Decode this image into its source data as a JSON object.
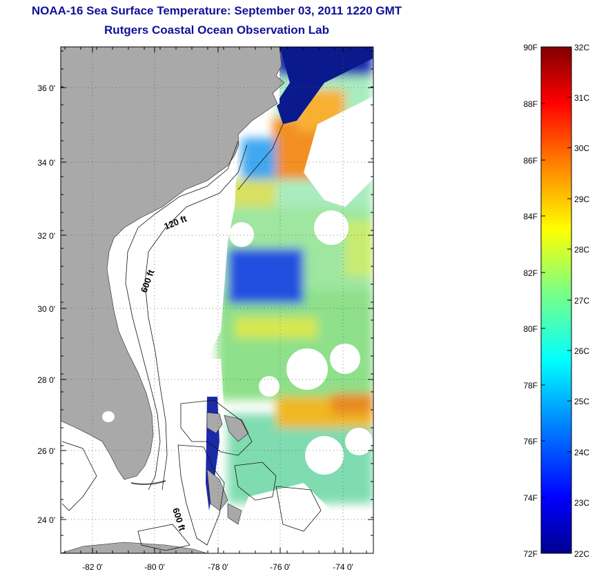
{
  "header": {
    "title": "NOAA-16 Sea Surface Temperature:  September 03, 2011 1220 GMT",
    "subtitle": "Rutgers Coastal Ocean Observation Lab"
  },
  "map": {
    "lat_ticks": [
      "24 0'",
      "26 0'",
      "28 0'",
      "30 0'",
      "32 0'",
      "34 0'",
      "36 0'"
    ],
    "lon_ticks": [
      "-82 0'",
      "-80 0'",
      "-78 0'",
      "-76 0'",
      "-74 0'"
    ],
    "contours": [
      "120 ft",
      "600 ft",
      "600 ft"
    ],
    "land_color": "#a9a9a9",
    "cloud_color": "#ffffff"
  },
  "colorbar": {
    "fahrenheit": [
      "90F",
      "88F",
      "86F",
      "84F",
      "82F",
      "80F",
      "78F",
      "76F",
      "74F",
      "72F"
    ],
    "celsius": [
      "32C",
      "31C",
      "30C",
      "29C",
      "28C",
      "27C",
      "26C",
      "25C",
      "24C",
      "23C",
      "22C"
    ],
    "colors": [
      "#00008f",
      "#0000ff",
      "#0080ff",
      "#00ffff",
      "#80ff80",
      "#ffff00",
      "#ff8000",
      "#ff0000",
      "#800000"
    ]
  }
}
